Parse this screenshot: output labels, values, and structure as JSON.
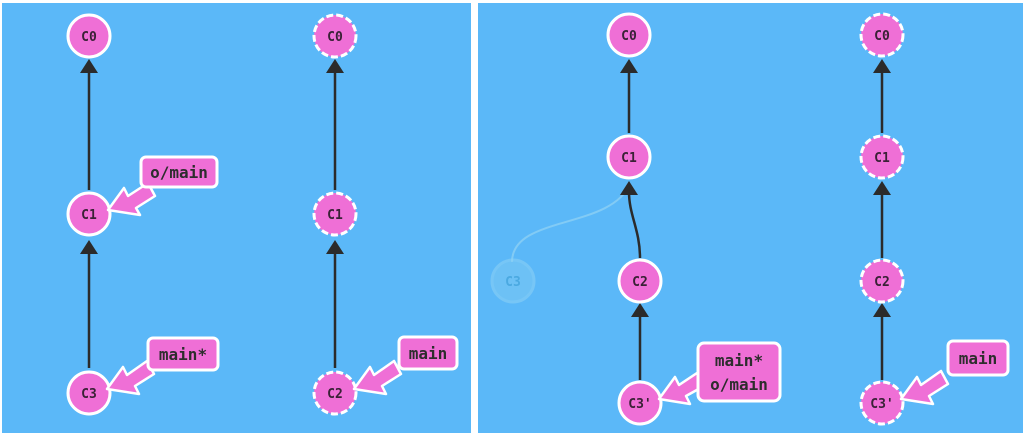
{
  "left_panel": {
    "local_repo": {
      "commits": [
        "C0",
        "C1",
        "C3"
      ],
      "branches": [
        "o/main",
        "main*"
      ]
    },
    "remote_repo": {
      "commits": [
        "C0",
        "C1",
        "C2"
      ],
      "branches": [
        "main"
      ]
    }
  },
  "right_panel": {
    "local_repo": {
      "commits": [
        "C0",
        "C1",
        "C2",
        "C3'"
      ],
      "ghost_commit": "C3",
      "branches": [
        "main*",
        "o/main"
      ]
    },
    "remote_repo": {
      "commits": [
        "C0",
        "C1",
        "C2",
        "C3'"
      ],
      "branches": [
        "main"
      ]
    }
  },
  "colors": {
    "background": "#5bb8f8",
    "commit_fill": "#ef6fd6",
    "commit_stroke": "#ffffff",
    "edge": "#2b2b2b",
    "ghost": "#78c9f3"
  }
}
